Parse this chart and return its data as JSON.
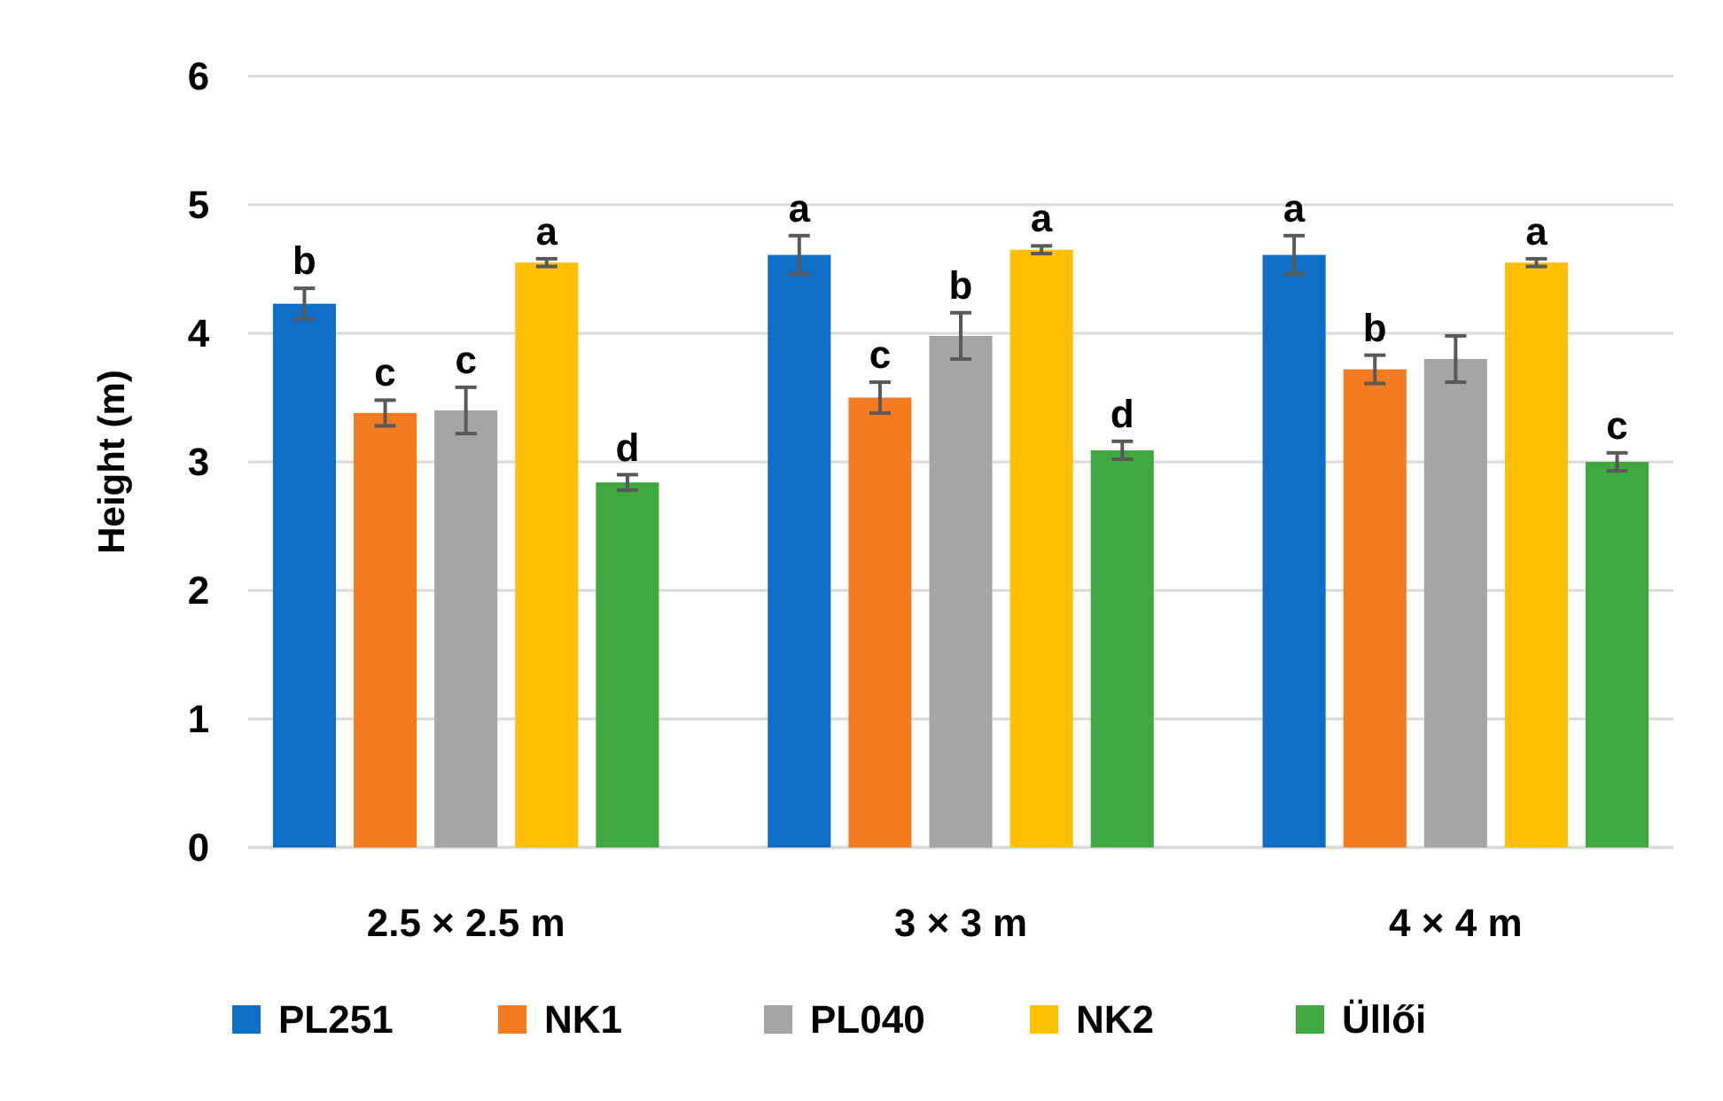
{
  "chart_data": {
    "type": "bar",
    "ylabel": "Height (m)",
    "categories": [
      "2.5 × 2.5 m",
      "3 × 3 m",
      "4 × 4 m"
    ],
    "ylim": [
      0,
      6
    ],
    "yticks": [
      0,
      1,
      2,
      3,
      4,
      5,
      6
    ],
    "grid": "y",
    "legend": "bottom",
    "series": [
      {
        "name": "PL251",
        "color": "#0f6fc6",
        "values": [
          4.23,
          4.61,
          4.61
        ],
        "errors": [
          0.12,
          0.15,
          0.15
        ],
        "value_labels": [
          "b",
          "a",
          "a"
        ]
      },
      {
        "name": "NK1",
        "color": "#f47b20",
        "values": [
          3.38,
          3.5,
          3.72
        ],
        "errors": [
          0.1,
          0.12,
          0.11
        ],
        "value_labels": [
          "c",
          "c",
          "b"
        ]
      },
      {
        "name": "PL040",
        "color": "#a5a5a5",
        "values": [
          3.4,
          3.98,
          3.8
        ],
        "errors": [
          0.18,
          0.18,
          0.18
        ],
        "value_labels": [
          "c",
          "b",
          null
        ]
      },
      {
        "name": "NK2",
        "color": "#ffc000",
        "values": [
          4.55,
          4.65,
          4.55
        ],
        "errors": [
          0.03,
          0.03,
          0.03
        ],
        "value_labels": [
          "a",
          "a",
          "a"
        ]
      },
      {
        "name": "Üllői",
        "color": "#3fa93f",
        "values": [
          2.84,
          3.09,
          3.0
        ],
        "errors": [
          0.06,
          0.07,
          0.07
        ],
        "value_labels": [
          "d",
          "d",
          "c"
        ]
      }
    ]
  }
}
